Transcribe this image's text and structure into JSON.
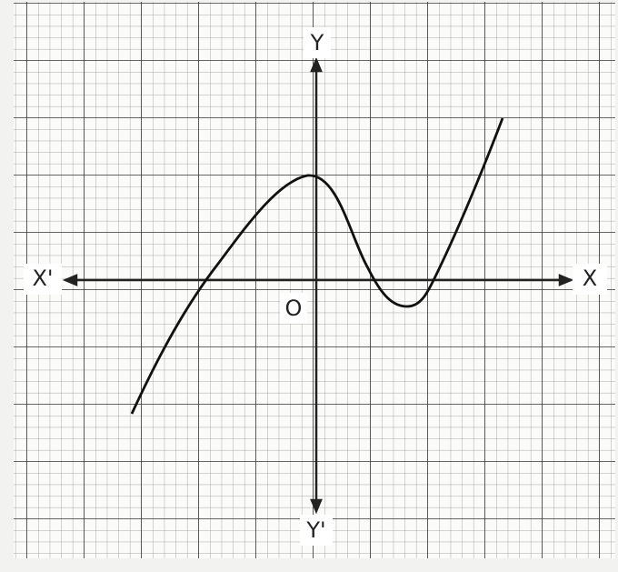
{
  "axes": {
    "y_label": "Y",
    "y_neg_label": "Y'",
    "x_label": "X",
    "x_neg_label": "X'",
    "origin_label": "O"
  }
}
